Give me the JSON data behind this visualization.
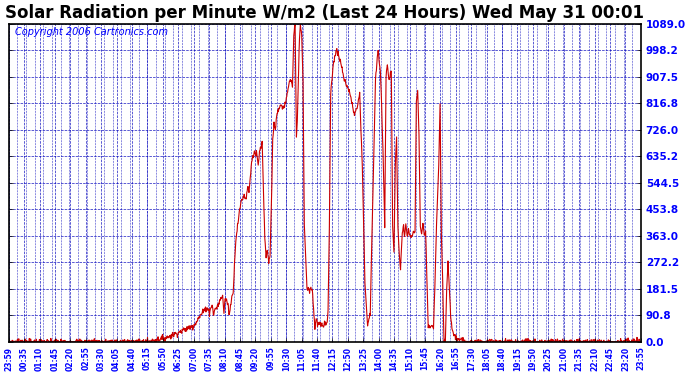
{
  "title": "Solar Radiation per Minute W/m2 (Last 24 Hours) Wed May 31 00:01",
  "copyright": "Copyright 2006 Cartronics.com",
  "yticks": [
    0.0,
    90.8,
    181.5,
    272.2,
    363.0,
    453.8,
    544.5,
    635.2,
    726.0,
    816.8,
    907.5,
    998.2,
    1089.0
  ],
  "ymax": 1089.0,
  "ymin": 0.0,
  "line_color": "#cc0000",
  "grid_color": "#0000bb",
  "bg_color": "#ffffff",
  "title_fontsize": 12,
  "copyright_fontsize": 7,
  "xtick_labels": [
    "23:59",
    "00:35",
    "01:10",
    "01:45",
    "02:20",
    "02:55",
    "03:30",
    "04:05",
    "04:40",
    "05:15",
    "05:50",
    "06:25",
    "07:00",
    "07:35",
    "08:10",
    "08:45",
    "09:20",
    "09:55",
    "10:30",
    "11:05",
    "11:40",
    "12:15",
    "12:50",
    "13:25",
    "14:00",
    "14:35",
    "15:10",
    "15:45",
    "16:20",
    "16:55",
    "17:30",
    "18:05",
    "18:40",
    "19:15",
    "19:50",
    "20:25",
    "21:00",
    "21:35",
    "22:10",
    "22:45",
    "23:20",
    "23:55"
  ],
  "n_points": 1440,
  "start_hour": 23.9833
}
